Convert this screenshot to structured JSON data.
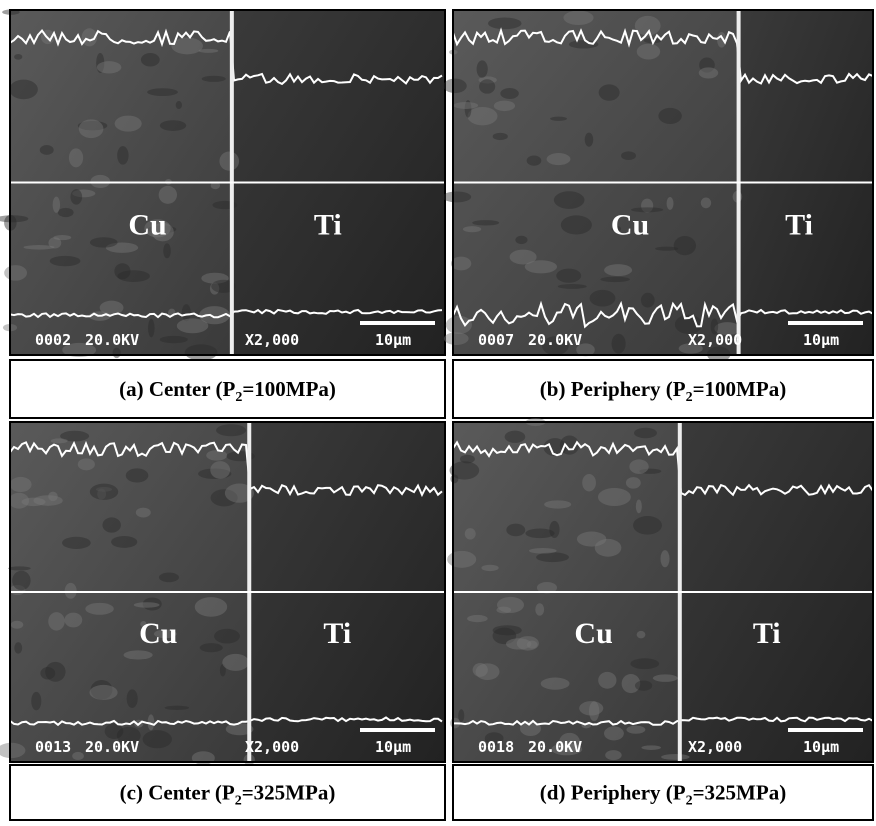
{
  "panels": [
    {
      "caption": {
        "prefix": "(a) Center (P",
        "subscript": "2",
        "suffix": "=100MPa)"
      },
      "labels": [
        "Cu",
        "Ti"
      ],
      "info": [
        "0002",
        "20.0KV",
        "X2,000",
        "10μm"
      ]
    },
    {
      "caption": {
        "prefix": "(b) Periphery (P",
        "subscript": "2",
        "suffix": "=100MPa)"
      },
      "labels": [
        "Cu",
        "Ti"
      ],
      "info": [
        "0007",
        "20.0KV",
        "X2,000",
        "10μm"
      ]
    },
    {
      "caption": {
        "prefix": "(c) Center (P",
        "subscript": "2",
        "suffix": "=325MPa)"
      },
      "labels": [
        "Cu",
        "Ti"
      ],
      "info": [
        "0013",
        "20.0KV",
        "X2,000",
        "10μm"
      ]
    },
    {
      "caption": {
        "prefix": "(d) Periphery (P",
        "subscript": "2",
        "suffix": "=325MPa)"
      },
      "labels": [
        "Cu",
        "Ti"
      ],
      "info": [
        "0018",
        "20.0KV",
        "X2,000",
        "10μm"
      ]
    }
  ]
}
